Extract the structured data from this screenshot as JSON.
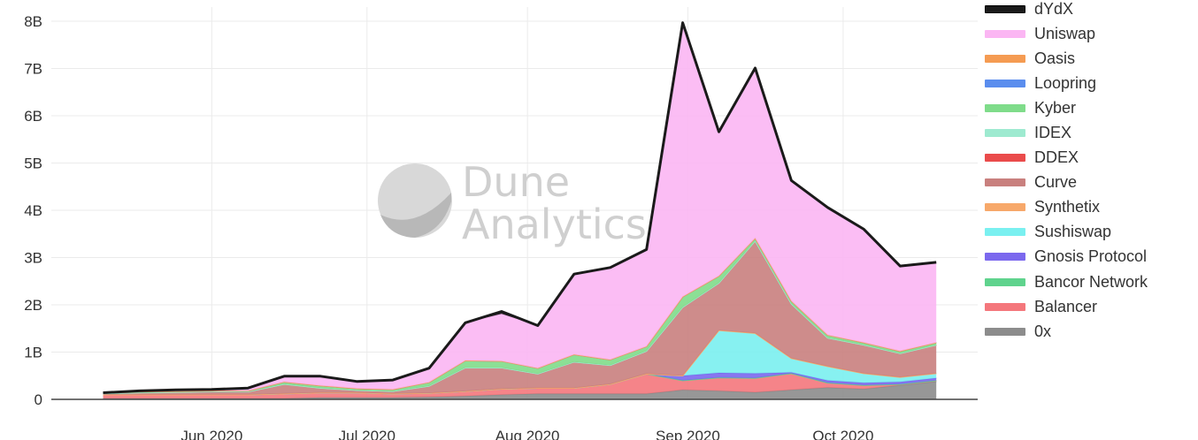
{
  "chart_data": {
    "type": "area",
    "stacked": true,
    "x": [
      "2020-05-11",
      "2020-05-18",
      "2020-05-25",
      "2020-06-01",
      "2020-06-08",
      "2020-06-15",
      "2020-06-22",
      "2020-06-29",
      "2020-07-06",
      "2020-07-13",
      "2020-07-20",
      "2020-07-27",
      "2020-08-03",
      "2020-08-10",
      "2020-08-17",
      "2020-08-24",
      "2020-08-31",
      "2020-09-07",
      "2020-09-14",
      "2020-09-21",
      "2020-09-28",
      "2020-10-05",
      "2020-10-12",
      "2020-10-19"
    ],
    "xticks": [
      "Jun 2020",
      "Jul 2020",
      "Aug 2020",
      "Sep 2020",
      "Oct 2020"
    ],
    "xtick_dates": [
      "2020-06-01",
      "2020-07-01",
      "2020-08-01",
      "2020-09-01",
      "2020-10-01"
    ],
    "yticks": [
      "0",
      "1B",
      "2B",
      "3B",
      "4B",
      "5B",
      "6B",
      "7B",
      "8B"
    ],
    "ylim": [
      0,
      8.3
    ],
    "grid": true,
    "legend_position": "right",
    "watermark": [
      "Dune",
      "Analytics"
    ],
    "series": [
      {
        "name": "0x",
        "color": "#8c8c8c",
        "values": [
          0.02,
          0.02,
          0.02,
          0.02,
          0.02,
          0.02,
          0.04,
          0.04,
          0.04,
          0.05,
          0.07,
          0.1,
          0.12,
          0.12,
          0.12,
          0.12,
          0.2,
          0.18,
          0.15,
          0.2,
          0.25,
          0.22,
          0.3,
          0.38
        ]
      },
      {
        "name": "Balancer",
        "color": "#f4777c",
        "values": [
          0.08,
          0.08,
          0.08,
          0.08,
          0.08,
          0.1,
          0.1,
          0.1,
          0.08,
          0.08,
          0.1,
          0.12,
          0.12,
          0.12,
          0.2,
          0.42,
          0.2,
          0.28,
          0.3,
          0.35,
          0.1,
          0.08,
          0.02,
          0.02
        ]
      },
      {
        "name": "Bancor Network",
        "color": "#5fd38d",
        "values": [
          0,
          0,
          0,
          0,
          0,
          0,
          0,
          0,
          0,
          0,
          0,
          0,
          0,
          0,
          0,
          0,
          0,
          0,
          0,
          0,
          0,
          0,
          0,
          0
        ]
      },
      {
        "name": "Gnosis Protocol",
        "color": "#7b68ee",
        "values": [
          0,
          0,
          0,
          0,
          0,
          0,
          0,
          0,
          0,
          0,
          0,
          0,
          0,
          0,
          0,
          0,
          0.1,
          0.1,
          0.1,
          0.02,
          0.05,
          0.05,
          0.05,
          0.05
        ]
      },
      {
        "name": "Sushiswap",
        "color": "#7af0f0",
        "values": [
          0,
          0,
          0,
          0,
          0,
          0,
          0,
          0,
          0,
          0,
          0,
          0,
          0,
          0,
          0,
          0,
          0,
          0.9,
          0.85,
          0.3,
          0.3,
          0.2,
          0.1,
          0.1
        ]
      },
      {
        "name": "Synthetix",
        "color": "#f7a86a",
        "values": [
          0,
          0,
          0,
          0,
          0,
          0,
          0,
          0,
          0,
          0,
          0,
          0,
          0,
          0,
          0,
          0,
          0,
          0,
          0,
          0,
          0,
          0,
          0,
          0
        ]
      },
      {
        "name": "Curve",
        "color": "#c9807e",
        "values": [
          0.02,
          0.04,
          0.05,
          0.06,
          0.06,
          0.2,
          0.1,
          0.05,
          0.05,
          0.15,
          0.5,
          0.45,
          0.3,
          0.55,
          0.4,
          0.48,
          1.45,
          1.0,
          1.95,
          1.15,
          0.6,
          0.6,
          0.5,
          0.6
        ]
      },
      {
        "name": "DDEX",
        "color": "#ea4b4b",
        "values": [
          0,
          0,
          0,
          0,
          0,
          0,
          0,
          0,
          0,
          0,
          0,
          0,
          0,
          0,
          0,
          0,
          0,
          0,
          0,
          0,
          0,
          0,
          0,
          0
        ]
      },
      {
        "name": "IDEX",
        "color": "#9eead0",
        "values": [
          0,
          0,
          0,
          0,
          0,
          0,
          0,
          0,
          0,
          0,
          0,
          0,
          0,
          0,
          0,
          0,
          0,
          0,
          0,
          0,
          0,
          0,
          0,
          0
        ]
      },
      {
        "name": "Kyber",
        "color": "#7fdc8a",
        "values": [
          0.01,
          0.02,
          0.02,
          0.02,
          0.02,
          0.05,
          0.05,
          0.04,
          0.04,
          0.08,
          0.15,
          0.14,
          0.12,
          0.16,
          0.12,
          0.1,
          0.22,
          0.15,
          0.06,
          0.06,
          0.06,
          0.05,
          0.05,
          0.05
        ]
      },
      {
        "name": "Loopring",
        "color": "#5a8dee",
        "values": [
          0,
          0,
          0,
          0,
          0,
          0,
          0,
          0,
          0,
          0,
          0,
          0,
          0,
          0,
          0,
          0,
          0,
          0,
          0,
          0,
          0,
          0,
          0,
          0
        ]
      },
      {
        "name": "Oasis",
        "color": "#f59b52",
        "values": [
          0,
          0,
          0,
          0,
          0,
          0,
          0,
          0,
          0,
          0,
          0,
          0,
          0,
          0,
          0,
          0,
          0,
          0,
          0,
          0,
          0,
          0,
          0,
          0
        ]
      },
      {
        "name": "Uniswap",
        "color": "#fbb6f3",
        "values": [
          0.01,
          0.02,
          0.03,
          0.03,
          0.06,
          0.12,
          0.2,
          0.15,
          0.2,
          0.3,
          0.8,
          1.0,
          0.9,
          1.7,
          1.95,
          2.05,
          5.8,
          3.05,
          3.6,
          2.55,
          2.7,
          2.4,
          1.8,
          1.7
        ]
      },
      {
        "name": "dYdX",
        "color": "#1a1a1a",
        "values": [
          0,
          0,
          0,
          0,
          0,
          0,
          0,
          0,
          0,
          0,
          0,
          0.05,
          0,
          0,
          0,
          0,
          0,
          0,
          0,
          0,
          0,
          0,
          0,
          0
        ]
      }
    ]
  }
}
